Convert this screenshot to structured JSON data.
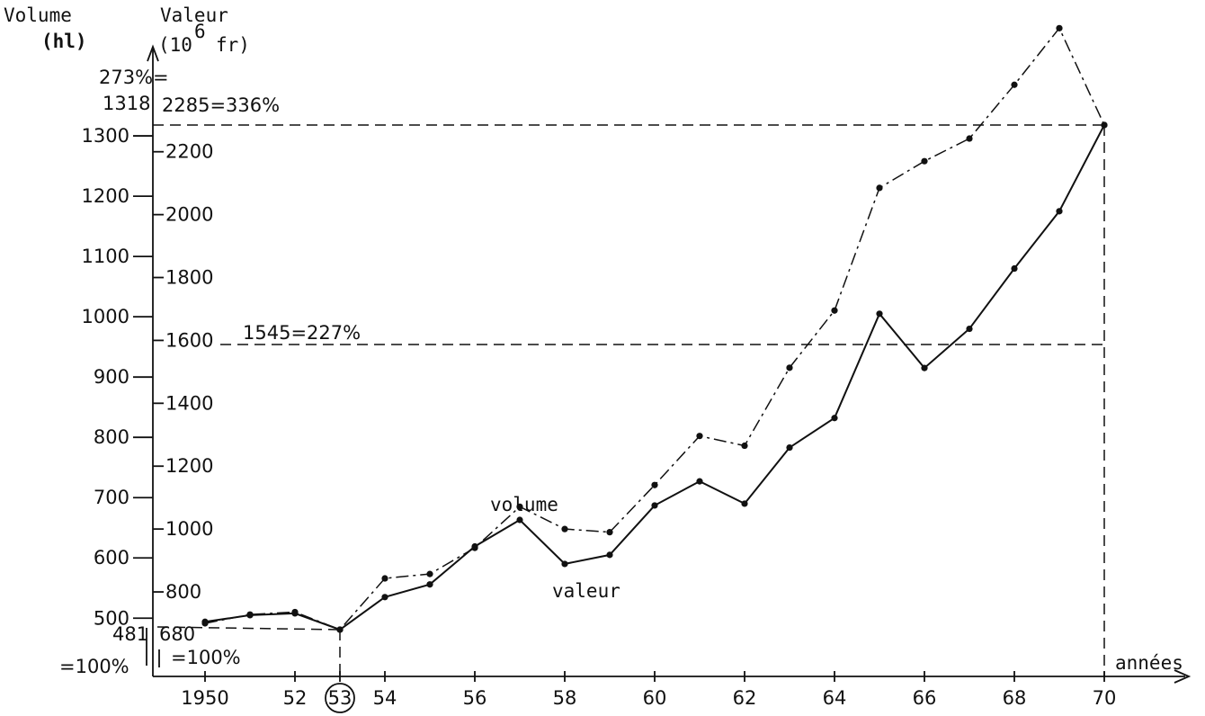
{
  "chart_data": {
    "type": "line",
    "x": [
      1950,
      1951,
      1952,
      1953,
      1954,
      1955,
      1956,
      1957,
      1958,
      1959,
      1960,
      1961,
      1962,
      1963,
      1964,
      1965,
      1966,
      1967,
      1968,
      1969,
      1970
    ],
    "series": [
      {
        "name": "volume",
        "values": [
          494,
          505,
          508,
          481,
          535,
          556,
          619,
          663,
          590,
          605,
          687,
          727,
          690,
          783,
          832,
          1005,
          915,
          980,
          1080,
          1175,
          1318
        ]
      },
      {
        "name": "valeur",
        "values": [
          700,
          728,
          736,
          680,
          843,
          857,
          940,
          1071,
          1000,
          990,
          1140,
          1296,
          1265,
          1513,
          1695,
          2085,
          2170,
          2242,
          2413,
          2593,
          2285
        ]
      }
    ],
    "y_left": {
      "label_line1": "Volume",
      "label_line2": "(hl)",
      "ticks": [
        500,
        600,
        700,
        800,
        900,
        1000,
        1100,
        1200,
        1300
      ],
      "range": [
        440,
        1330
      ]
    },
    "y_right": {
      "label_line1": "Valeur",
      "label_line2": "(10",
      "label_sup": "6",
      "label_unit": "fr)",
      "ticks": [
        800,
        1000,
        1200,
        1400,
        1600,
        1800,
        2000,
        2200
      ]
    },
    "x_axis": {
      "label": "années",
      "ticks": [
        {
          "value": 1950,
          "label": "1950"
        },
        {
          "value": 1952,
          "label": "52"
        },
        {
          "value": 1953,
          "label": "53"
        },
        {
          "value": 1954,
          "label": "54"
        },
        {
          "value": 1956,
          "label": "56"
        },
        {
          "value": 1958,
          "label": "58"
        },
        {
          "value": 1960,
          "label": "60"
        },
        {
          "value": 1962,
          "label": "62"
        },
        {
          "value": 1964,
          "label": "64"
        },
        {
          "value": 1966,
          "label": "66"
        },
        {
          "value": 1968,
          "label": "68"
        },
        {
          "value": 1970,
          "label": "70"
        }
      ],
      "circled": 1953
    },
    "annotations": {
      "top_left_a": "273%=",
      "top_left_b": "1318",
      "top_right": "2285=336%",
      "mid": "1545=227%",
      "base_left_a": "481",
      "base_left_b": "=100%",
      "base_right_a": "680",
      "base_right_b": "=100%",
      "series_label_volume": "volume",
      "series_label_valeur": "valeur"
    },
    "grid": false,
    "legend": "inline"
  }
}
